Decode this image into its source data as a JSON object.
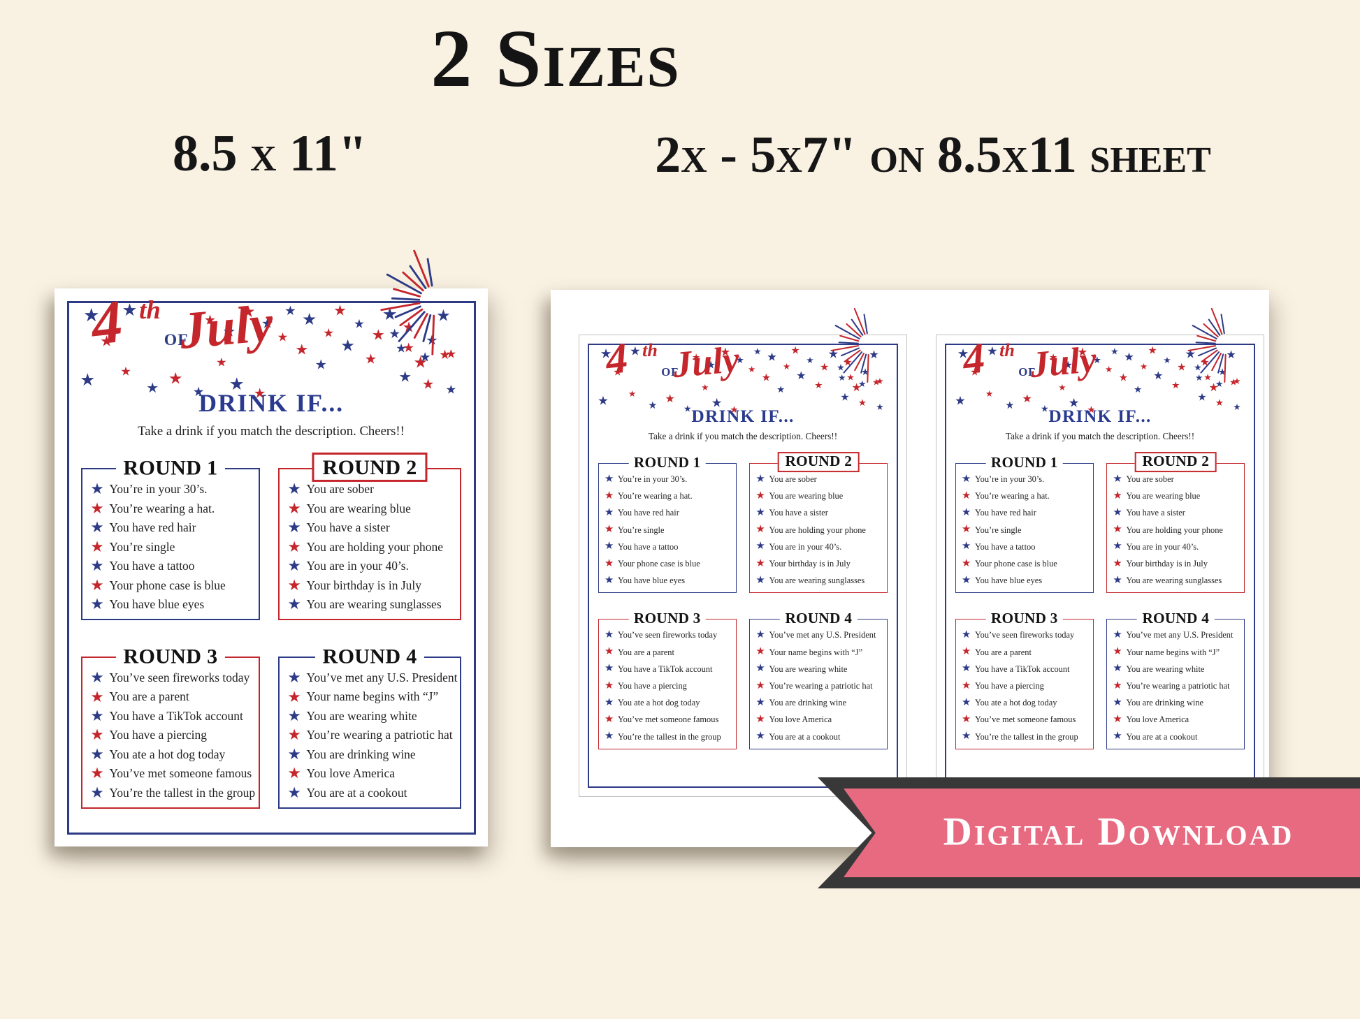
{
  "page": {
    "title": "2 Sizes",
    "size_label_left": "8.5 x 11\"",
    "size_label_right": "2x - 5x7\" on 8.5x11 sheet",
    "ribbon_label": "Digital Download"
  },
  "card": {
    "heading_4": "4",
    "heading_th": "th",
    "heading_of": "OF",
    "heading_july": "July",
    "drink_title": "DRINK IF...",
    "tagline": "Take a drink if you match the description. Cheers!!",
    "rounds": [
      {
        "title": "ROUND 1",
        "border": "navy",
        "badge": false,
        "items": [
          {
            "star": "blue",
            "text": "You’re in your 30’s."
          },
          {
            "star": "red",
            "text": "You’re wearing a hat."
          },
          {
            "star": "blue",
            "text": "You have red hair"
          },
          {
            "star": "red",
            "text": "You’re single"
          },
          {
            "star": "blue",
            "text": "You have a tattoo"
          },
          {
            "star": "red",
            "text": "Your phone case is blue"
          },
          {
            "star": "blue",
            "text": "You have blue eyes"
          }
        ]
      },
      {
        "title": "ROUND 2",
        "border": "red",
        "badge": true,
        "items": [
          {
            "star": "blue",
            "text": "You are sober"
          },
          {
            "star": "red",
            "text": "You are wearing blue"
          },
          {
            "star": "blue",
            "text": "You have a sister"
          },
          {
            "star": "red",
            "text": "You are holding your phone"
          },
          {
            "star": "blue",
            "text": "You are in your 40’s."
          },
          {
            "star": "red",
            "text": "Your birthday is in July"
          },
          {
            "star": "blue",
            "text": "You are wearing sunglasses"
          }
        ]
      },
      {
        "title": "ROUND 3",
        "border": "red",
        "badge": false,
        "items": [
          {
            "star": "blue",
            "text": "You’ve seen fireworks today"
          },
          {
            "star": "red",
            "text": "You are a parent"
          },
          {
            "star": "blue",
            "text": "You have a TikTok account"
          },
          {
            "star": "red",
            "text": "You have a piercing"
          },
          {
            "star": "blue",
            "text": "You ate a hot dog today"
          },
          {
            "star": "red",
            "text": "You’ve met someone famous"
          },
          {
            "star": "blue",
            "text": "You’re the tallest in the group"
          }
        ]
      },
      {
        "title": "ROUND 4",
        "border": "navy",
        "badge": false,
        "items": [
          {
            "star": "blue",
            "text": "You’ve met any U.S. President"
          },
          {
            "star": "red",
            "text": "Your name begins with “J”"
          },
          {
            "star": "blue",
            "text": "You are wearing white"
          },
          {
            "star": "red",
            "text": "You’re wearing a patriotic hat"
          },
          {
            "star": "blue",
            "text": "You are drinking wine"
          },
          {
            "star": "red",
            "text": "You love America"
          },
          {
            "star": "blue",
            "text": "You are at a cookout"
          }
        ]
      }
    ]
  },
  "colors": {
    "red": "#c4262b",
    "navy": "#2d3a86",
    "pink": "#e76a80",
    "ribbon_dark": "#393839",
    "background_cream": "#f9f1e2",
    "paper_white": "#ffffff"
  }
}
